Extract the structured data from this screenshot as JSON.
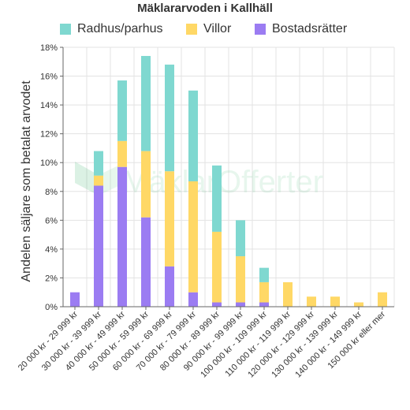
{
  "chart_data": {
    "type": "bar",
    "stacked": true,
    "title": "Mäklararvoden i Kallhäll",
    "ylabel": "Andelen säljare som betalat arvodet",
    "xlabel": "",
    "ylim": [
      0,
      18
    ],
    "yticks": [
      0,
      2,
      4,
      6,
      8,
      10,
      12,
      14,
      16,
      18
    ],
    "ytick_suffix": "%",
    "grid": true,
    "legend_position": "top",
    "categories": [
      "20 000 kr - 29 999 kr",
      "30 000 kr - 39 999 kr",
      "40 000 kr - 49 999 kr",
      "50 000 kr - 59 999 kr",
      "60 000 kr - 69 999 kr",
      "70 000 kr - 79 999 kr",
      "80 000 kr - 89 999 kr",
      "90 000 kr - 99 999 kr",
      "100 000 kr - 109 999 kr",
      "110 000 kr - 119 999 kr",
      "120 000 kr - 129 999 kr",
      "130 000 kr - 139 999 kr",
      "140 000 kr - 149 999 kr",
      "150 000 kr eller mer"
    ],
    "series": [
      {
        "name": "Radhus/parhus",
        "color": "#7fd8d0",
        "values": [
          0,
          1.7,
          4.2,
          6.6,
          7.4,
          6.3,
          4.6,
          2.5,
          1.0,
          0,
          0,
          0,
          0,
          0
        ]
      },
      {
        "name": "Villor",
        "color": "#ffd866",
        "values": [
          0,
          0.7,
          1.8,
          4.6,
          6.6,
          7.7,
          4.9,
          3.2,
          1.4,
          1.7,
          0.7,
          0.7,
          0.3,
          1.0
        ]
      },
      {
        "name": "Bostadsrätter",
        "color": "#9b7cf2",
        "values": [
          1.0,
          8.4,
          9.7,
          6.2,
          2.8,
          1.0,
          0.3,
          0.3,
          0.3,
          0,
          0,
          0,
          0,
          0
        ]
      }
    ],
    "stack_order_bottom_to_top": [
      "Bostadsrätter",
      "Villor",
      "Radhus/parhus"
    ]
  },
  "watermark": "MäklarOfferter"
}
